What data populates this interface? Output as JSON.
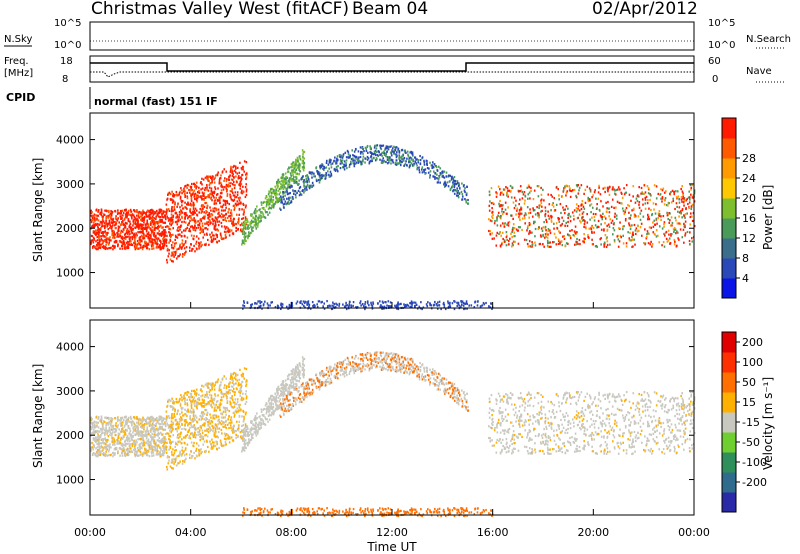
{
  "header": {
    "title": "Christmas Valley West (fitACF)",
    "beam": "Beam 04",
    "date": "02/Apr/2012"
  },
  "noise_panel": {
    "left_label": "N.Sky",
    "right_label": "N.Search",
    "left_top": "10^5",
    "left_bottom": "10^0",
    "right_top": "10^5",
    "right_bottom": "10^0"
  },
  "freq_panel": {
    "left_label_1": "Freq.",
    "left_label_2": "[MHz]",
    "right_label": "Nave",
    "left_top": "18",
    "left_bottom": "8",
    "right_top": "60",
    "right_bottom": "0",
    "cpid_label": "CPID",
    "cpid_value": "normal (fast) 151 IF"
  },
  "chart_data": [
    {
      "type": "heatmap",
      "ylabel": "Slant Range [km]",
      "xlim": [
        "00:00",
        "24:00"
      ],
      "ylim": [
        200,
        4600
      ],
      "y_ticks": [
        "1000",
        "2000",
        "3000",
        "4000"
      ],
      "colorbar": {
        "label": "Power [dB]",
        "ticks": [
          "4",
          "8",
          "12",
          "16",
          "20",
          "24",
          "28"
        ],
        "colors": [
          "#0a14e6",
          "#2a48b8",
          "#3a6e8a",
          "#4a9a5a",
          "#7dbf2e",
          "#ffc800",
          "#ff9a00",
          "#ff5a00",
          "#ff1a00"
        ]
      }
    },
    {
      "type": "heatmap",
      "ylabel": "Slant Range [km]",
      "xlabel": "Time UT",
      "xlim": [
        "00:00",
        "24:00"
      ],
      "ylim": [
        200,
        4600
      ],
      "x_ticks": [
        "00:00",
        "04:00",
        "08:00",
        "12:00",
        "16:00",
        "20:00",
        "00:00"
      ],
      "y_ticks": [
        "1000",
        "2000",
        "3000",
        "4000"
      ],
      "colorbar": {
        "label": "Velocity [m s⁻¹]",
        "ticks": [
          "200",
          "100",
          "50",
          "15",
          "-15",
          "-50",
          "-100",
          "-200"
        ],
        "colors": [
          "#2a2aa8",
          "#2f6b8c",
          "#2f8f5a",
          "#6fcf30",
          "#c8c8c0",
          "#ffb000",
          "#ff7000",
          "#ff3000",
          "#e00000"
        ]
      }
    }
  ]
}
